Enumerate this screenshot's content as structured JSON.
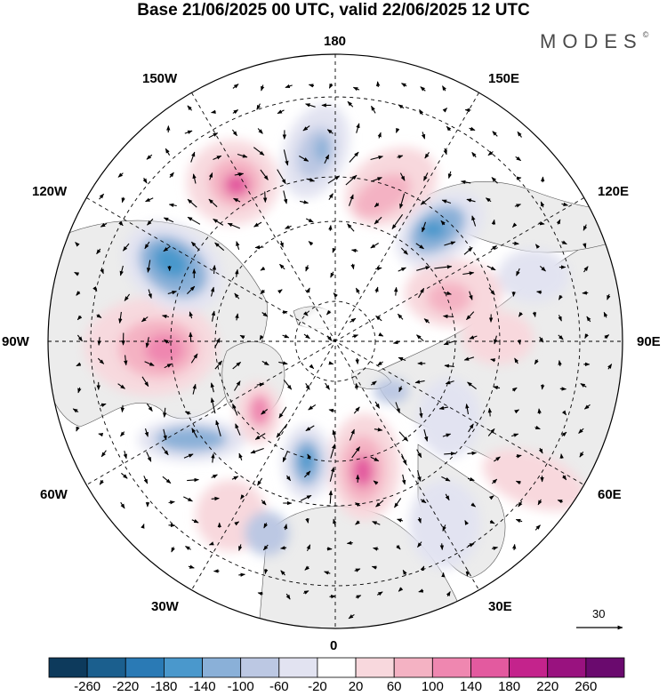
{
  "title": "Base 21/06/2025 00 UTC, valid 22/06/2025 12 UTC",
  "brand": {
    "name": "MODES",
    "mark": "©"
  },
  "longitude_labels": {
    "top": "180",
    "bottom": "0",
    "left": "90W",
    "right": "90E",
    "upper_left": "150W",
    "upper_right": "150E",
    "mid_upper_left": "120W",
    "mid_upper_right": "120E",
    "mid_lower_left": "60W",
    "mid_lower_right": "60E",
    "lower_left": "30W",
    "lower_right": "30E"
  },
  "vector_scale": {
    "value": "30"
  },
  "colorbar": {
    "labels": [
      "-260",
      "-220",
      "-180",
      "-140",
      "-100",
      "-60",
      "-20",
      "20",
      "60",
      "100",
      "140",
      "180",
      "220",
      "260"
    ],
    "colors": [
      "#0d3a5c",
      "#1b5f8e",
      "#2a7ab5",
      "#4a98cc",
      "#8ab0d8",
      "#bcc8e3",
      "#e2e3f1",
      "#ffffff",
      "#f8d8dd",
      "#f4b2c3",
      "#ef87b0",
      "#e35a9f",
      "#c4238c",
      "#99127f",
      "#6a0a6e"
    ]
  },
  "map_features": {
    "projection": "north-polar-stereographic",
    "positive_anomaly_color": "#e35a9f",
    "negative_anomaly_color": "#2a7ab5",
    "land_color": "#ececec",
    "ocean_color": "#ffffff"
  }
}
